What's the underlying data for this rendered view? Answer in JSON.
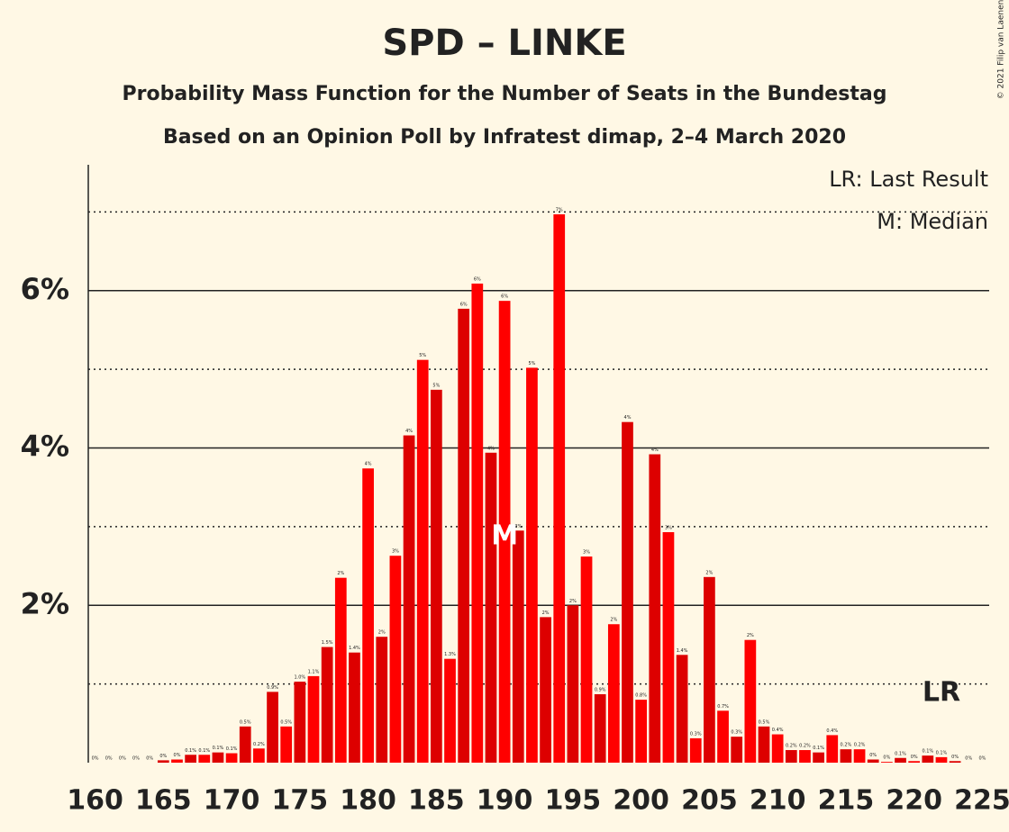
{
  "chart_data": {
    "type": "bar",
    "title": "SPD – LINKE",
    "subtitle": "Probability Mass Function for the Number of Seats in the Bundestag",
    "subtitle2": "Based on an Opinion Poll by Infratest dimap, 2–4 March 2020",
    "copyright": "© 2021 Filip van Laenen",
    "legend": [
      "LR: Last Result",
      "M: Median"
    ],
    "x": [
      160,
      161,
      162,
      163,
      164,
      165,
      166,
      167,
      168,
      169,
      170,
      171,
      172,
      173,
      174,
      175,
      176,
      177,
      178,
      179,
      180,
      181,
      182,
      183,
      184,
      185,
      186,
      187,
      188,
      189,
      190,
      191,
      192,
      193,
      194,
      195,
      196,
      197,
      198,
      199,
      200,
      201,
      202,
      203,
      204,
      205,
      206,
      207,
      208,
      209,
      210,
      211,
      212,
      213,
      214,
      215,
      216,
      217,
      218,
      219,
      220,
      221,
      222,
      223,
      224,
      225
    ],
    "series": [
      {
        "colors": [
          "#ff0000",
          "#dd0000"
        ],
        "values": [
          0,
          0,
          0,
          0,
          0,
          0.03,
          0.04,
          0.1,
          0.1,
          0.13,
          0.12,
          0.46,
          0.18,
          0.9,
          0.46,
          1.03,
          1.1,
          1.47,
          2.35,
          1.4,
          3.74,
          1.6,
          2.63,
          4.16,
          5.12,
          4.74,
          1.32,
          5.77,
          6.09,
          3.94,
          5.87,
          2.95,
          5.02,
          1.85,
          6.97,
          2.0,
          2.62,
          0.87,
          1.76,
          4.33,
          0.8,
          3.92,
          2.93,
          1.37,
          0.31,
          2.36,
          0.66,
          0.33,
          1.56,
          0.46,
          0.36,
          0.16,
          0.16,
          0.13,
          0.35,
          0.17,
          0.17,
          0.04,
          0.01,
          0.06,
          0.02,
          0.09,
          0.07,
          0.02,
          0,
          0
        ],
        "value_labels": [
          "0%",
          "0%",
          "0%",
          "0%",
          "0%",
          "0%",
          "0%",
          "0.1%",
          "0.1%",
          "0.1%",
          "0.1%",
          "0.5%",
          "0.2%",
          "0.9%",
          "0.5%",
          "1.0%",
          "1.1%",
          "1.5%",
          "2%",
          "1.4%",
          "4%",
          "2%",
          "3%",
          "4%",
          "5%",
          "5%",
          "1.3%",
          "6%",
          "6%",
          "4%",
          "6%",
          "3%",
          "5%",
          "2%",
          "7%",
          "2%",
          "3%",
          "0.9%",
          "2%",
          "4%",
          "0.8%",
          "4%",
          "3%",
          "1.4%",
          "0.3%",
          "2%",
          "0.7%",
          "0.3%",
          "2%",
          "0.5%",
          "0.4%",
          "0.2%",
          "0.2%",
          "0.1%",
          "0.4%",
          "0.2%",
          "0.2%",
          "0%",
          "0%",
          "0.1%",
          "0%",
          "0.1%",
          "0.1%",
          "0%",
          "0%",
          "0%"
        ]
      }
    ],
    "xlim": [
      159.5,
      225.5
    ],
    "xticks": [
      160,
      165,
      170,
      175,
      180,
      185,
      190,
      195,
      200,
      205,
      210,
      215,
      220,
      225
    ],
    "ylim": [
      0,
      7.6
    ],
    "yticks": [
      {
        "value": 2,
        "label": "2%"
      },
      {
        "value": 4,
        "label": "4%"
      },
      {
        "value": 6,
        "label": "6%"
      }
    ],
    "minor_yticks": [
      1,
      3,
      5,
      7
    ],
    "median": 190,
    "median_label": "M",
    "last_result": 222,
    "last_result_label": "LR"
  }
}
